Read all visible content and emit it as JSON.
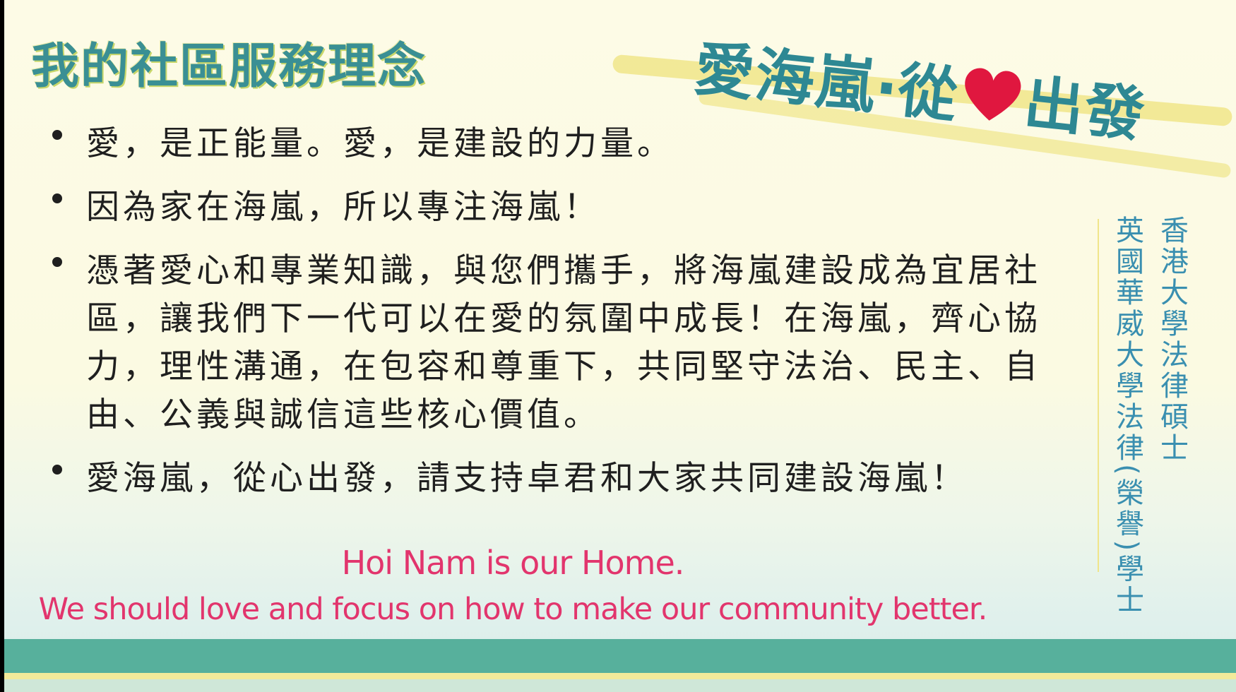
{
  "title": "我的社區服務理念",
  "slogan": {
    "part1": "愛海嵐‧從",
    "icon": "heart-icon",
    "part2": "出發"
  },
  "points": [
    "愛，是正能量。愛，是建設的力量。",
    "因為家在海嵐，所以專注海嵐！",
    "憑著愛心和專業知識，與您們攜手，將海嵐建設成為宜居社區，讓我們下一代可以在愛的氛圍中成長！在海嵐，齊心協力，理性溝通，在包容和尊重下，共同堅守法治、民主、自由、公義與誠信這些核心價值。",
    "愛海嵐，從心出發，請支持卓君和大家共同建設海嵐！"
  ],
  "credentials": [
    "香港大學法律碩士",
    "英國華威大學法律(榮譽)學士"
  ],
  "english": {
    "line1": "Hoi Nam is our Home.",
    "line2": "We should love and focus on how to make our community better."
  },
  "colors": {
    "title": "#3a8f94",
    "slogan": "#2e8893",
    "heart": "#e0173f",
    "credentials": "#3a8fb0",
    "english": "#e2356d",
    "band": "#57b09c",
    "highlight": "#f0e58a"
  }
}
